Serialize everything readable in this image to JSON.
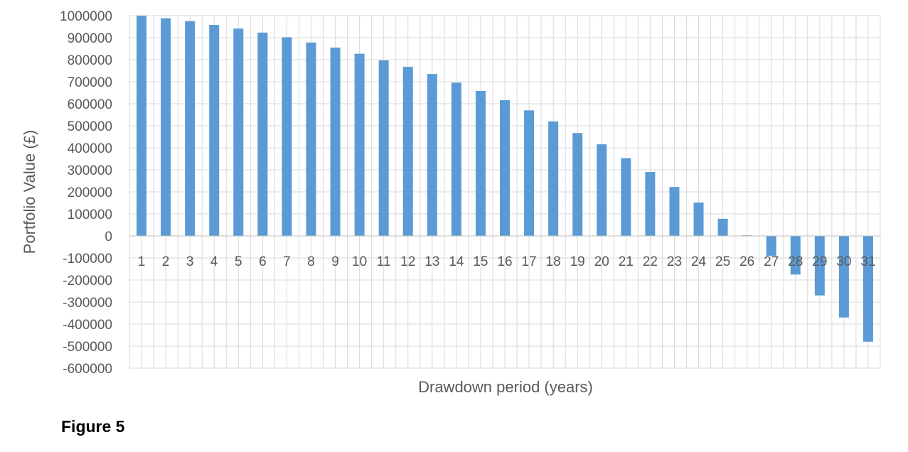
{
  "chart_data": {
    "type": "bar",
    "categories": [
      "1",
      "2",
      "3",
      "4",
      "5",
      "6",
      "7",
      "8",
      "9",
      "10",
      "11",
      "12",
      "13",
      "14",
      "15",
      "16",
      "17",
      "18",
      "19",
      "20",
      "21",
      "22",
      "23",
      "24",
      "25",
      "26",
      "27",
      "28",
      "29",
      "30",
      "31"
    ],
    "values": [
      1000000,
      988000,
      975000,
      958000,
      941000,
      923000,
      902000,
      878000,
      855000,
      827000,
      797000,
      768000,
      735000,
      696000,
      658000,
      616000,
      570000,
      520000,
      467000,
      416000,
      353000,
      290000,
      222000,
      152000,
      78000,
      3000,
      -90000,
      -175000,
      -270000,
      -370000,
      -480000
    ],
    "xlabel": "Drawdown period (years)",
    "ylabel": "Portfolio Value (£)",
    "ylim": [
      -600000,
      1000000
    ],
    "yticks": [
      "1000000",
      "900000",
      "800000",
      "700000",
      "600000",
      "500000",
      "400000",
      "300000",
      "200000",
      "100000",
      "0",
      "-100000",
      "-200000",
      "-300000",
      "-400000",
      "-500000",
      "-600000"
    ],
    "grid": true,
    "bar_color": "#5B9BD5",
    "grid_color": "#D9D9D9"
  },
  "caption": "Figure 5"
}
